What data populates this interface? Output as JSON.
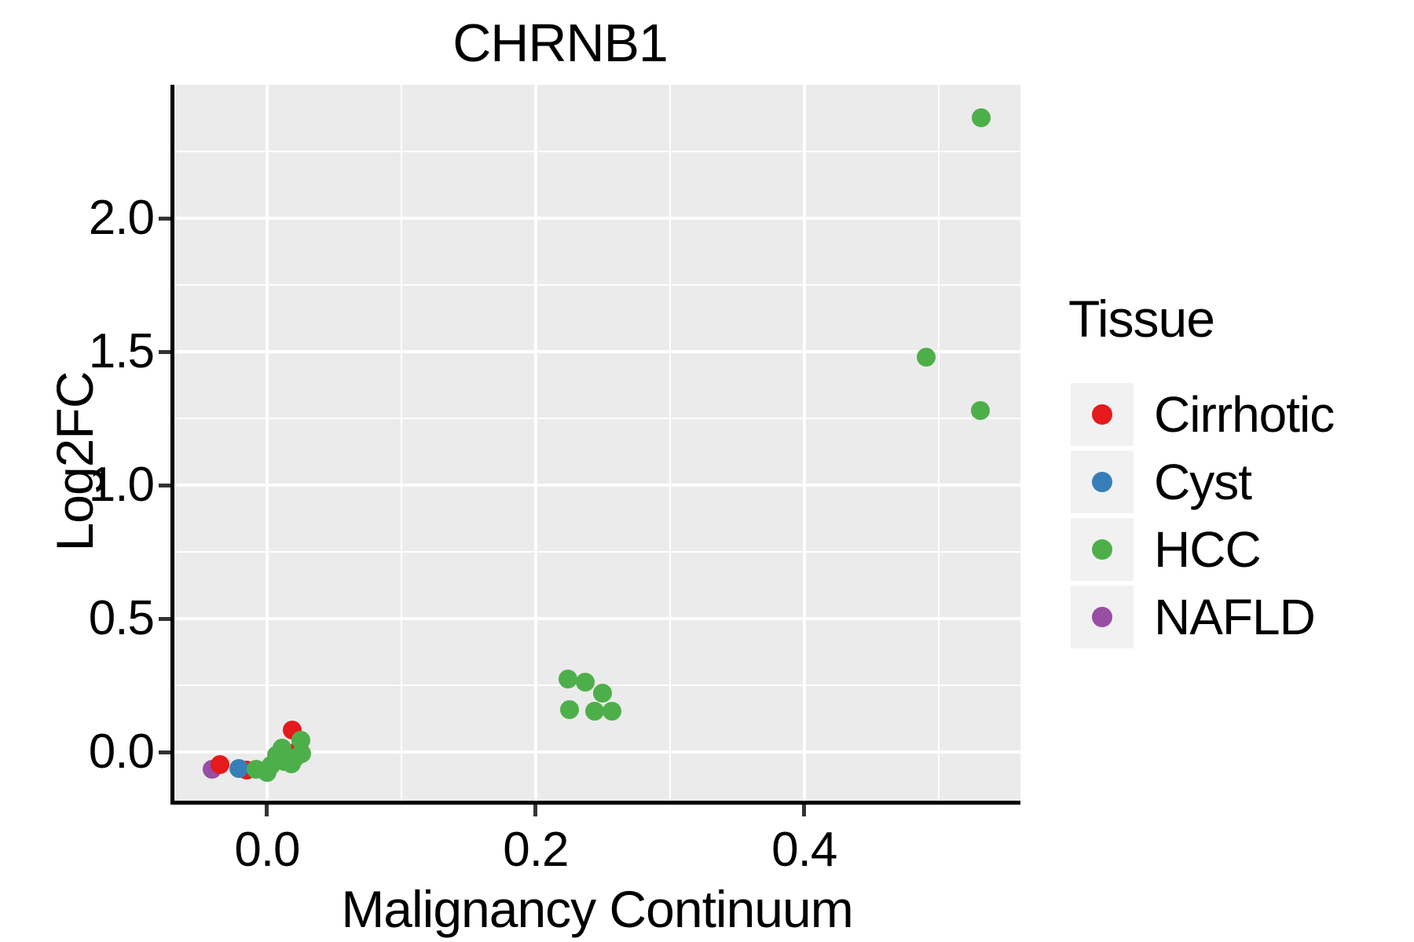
{
  "title": "CHRNB1",
  "chart_data": {
    "type": "scatter",
    "title": "CHRNB1",
    "xlabel": "Malignancy Continuum",
    "ylabel": "Log2FC",
    "xlim": [
      -0.069,
      0.561
    ],
    "ylim": [
      -0.182,
      2.5
    ],
    "x_ticks": [
      0.0,
      0.2,
      0.4
    ],
    "x_minor_gridlines": [
      0.1,
      0.3,
      0.5
    ],
    "y_ticks": [
      0.0,
      0.5,
      1.0,
      1.5,
      2.0
    ],
    "y_minor_gridlines": [
      0.25,
      0.75,
      1.25,
      1.75,
      2.25
    ],
    "grid": true,
    "panel_background": "#EBEBEB",
    "gridline_color": "#FFFFFF",
    "legend_title": "Tissue",
    "legend_position": "right",
    "tissues": [
      {
        "name": "Cirrhotic",
        "color": "#E41A1C"
      },
      {
        "name": "Cyst",
        "color": "#377EB8"
      },
      {
        "name": "HCC",
        "color": "#4DAF4A"
      },
      {
        "name": "NAFLD",
        "color": "#984EA3"
      }
    ],
    "points": [
      {
        "x": -0.041,
        "y": -0.065,
        "tissue": "NAFLD"
      },
      {
        "x": -0.035,
        "y": -0.047,
        "tissue": "Cirrhotic"
      },
      {
        "x": -0.015,
        "y": -0.068,
        "tissue": "Cirrhotic"
      },
      {
        "x": 0.024,
        "y": 0.012,
        "tissue": "Cirrhotic"
      },
      {
        "x": 0.019,
        "y": 0.082,
        "tissue": "Cirrhotic"
      },
      {
        "x": -0.021,
        "y": -0.062,
        "tissue": "Cyst"
      },
      {
        "x": -0.008,
        "y": -0.065,
        "tissue": "HCC"
      },
      {
        "x": 0.0,
        "y": -0.075,
        "tissue": "HCC"
      },
      {
        "x": 0.003,
        "y": -0.05,
        "tissue": "HCC"
      },
      {
        "x": 0.007,
        "y": -0.011,
        "tissue": "HCC"
      },
      {
        "x": 0.011,
        "y": 0.015,
        "tissue": "HCC"
      },
      {
        "x": 0.013,
        "y": -0.035,
        "tissue": "HCC"
      },
      {
        "x": 0.018,
        "y": -0.045,
        "tissue": "HCC"
      },
      {
        "x": 0.021,
        "y": -0.02,
        "tissue": "HCC"
      },
      {
        "x": 0.026,
        "y": -0.006,
        "tissue": "HCC"
      },
      {
        "x": 0.025,
        "y": 0.045,
        "tissue": "HCC"
      },
      {
        "x": 0.224,
        "y": 0.274,
        "tissue": "HCC"
      },
      {
        "x": 0.237,
        "y": 0.262,
        "tissue": "HCC"
      },
      {
        "x": 0.25,
        "y": 0.22,
        "tissue": "HCC"
      },
      {
        "x": 0.225,
        "y": 0.159,
        "tissue": "HCC"
      },
      {
        "x": 0.244,
        "y": 0.153,
        "tissue": "HCC"
      },
      {
        "x": 0.257,
        "y": 0.153,
        "tissue": "HCC"
      },
      {
        "x": 0.491,
        "y": 1.48,
        "tissue": "HCC"
      },
      {
        "x": 0.531,
        "y": 1.28,
        "tissue": "HCC"
      },
      {
        "x": 0.532,
        "y": 2.376,
        "tissue": "HCC"
      }
    ]
  }
}
